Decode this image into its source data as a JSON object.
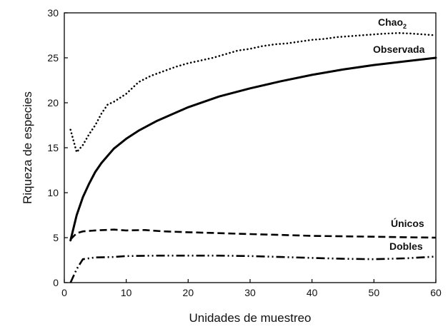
{
  "chart_data": {
    "type": "line",
    "xlabel": "Unidades de muestreo",
    "ylabel": "Riqueza de especies",
    "xlim": [
      0,
      60
    ],
    "ylim": [
      0,
      30
    ],
    "xticks": [
      0,
      10,
      20,
      30,
      40,
      50,
      60
    ],
    "yticks": [
      0,
      5,
      10,
      15,
      20,
      25,
      30
    ],
    "grid": false,
    "legend": "none",
    "series": [
      {
        "name": "Chao2",
        "label_main": "Chao",
        "label_sub": "2",
        "style": "dotted",
        "x": [
          1,
          2,
          3,
          4,
          5,
          6,
          7,
          8,
          10,
          12,
          14,
          16,
          18,
          20,
          22,
          24,
          26,
          28,
          30,
          32,
          34,
          36,
          38,
          40,
          42,
          44,
          46,
          48,
          50,
          52,
          54,
          56,
          58,
          60
        ],
        "y": [
          17.0,
          14.5,
          15.3,
          16.5,
          17.5,
          18.8,
          19.8,
          20.1,
          21.0,
          22.3,
          23.0,
          23.5,
          24.0,
          24.4,
          24.7,
          25.0,
          25.4,
          25.8,
          26.0,
          26.3,
          26.5,
          26.6,
          26.8,
          27.0,
          27.1,
          27.3,
          27.4,
          27.5,
          27.6,
          27.7,
          27.75,
          27.7,
          27.6,
          27.5
        ]
      },
      {
        "name": "Observada",
        "style": "solid",
        "x": [
          1,
          2,
          3,
          4,
          5,
          6,
          8,
          10,
          12,
          15,
          20,
          25,
          30,
          35,
          40,
          45,
          50,
          55,
          60
        ],
        "y": [
          4.7,
          7.5,
          9.5,
          11.0,
          12.3,
          13.3,
          14.9,
          16.0,
          16.9,
          18.0,
          19.5,
          20.7,
          21.6,
          22.4,
          23.1,
          23.7,
          24.2,
          24.6,
          25.0
        ]
      },
      {
        "name": "Únicos",
        "style": "dashed",
        "x": [
          1,
          2,
          3,
          5,
          8,
          10,
          13,
          16,
          20,
          25,
          30,
          35,
          40,
          45,
          50,
          55,
          60
        ],
        "y": [
          4.8,
          5.5,
          5.7,
          5.8,
          5.9,
          5.8,
          5.85,
          5.7,
          5.6,
          5.5,
          5.4,
          5.3,
          5.2,
          5.15,
          5.1,
          5.05,
          5.0
        ]
      },
      {
        "name": "Dobles",
        "style": "dash-dot-dot",
        "x": [
          1,
          2,
          3,
          5,
          8,
          10,
          15,
          20,
          25,
          30,
          35,
          40,
          45,
          50,
          55,
          60
        ],
        "y": [
          0.0,
          1.5,
          2.6,
          2.8,
          2.85,
          2.95,
          3.0,
          3.0,
          3.0,
          2.95,
          2.85,
          2.75,
          2.65,
          2.6,
          2.7,
          2.9
        ]
      }
    ]
  }
}
